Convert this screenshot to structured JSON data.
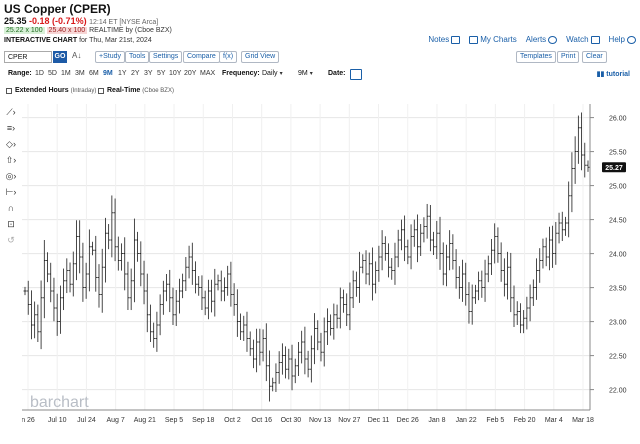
{
  "header": {
    "title": "US Copper (CPER)",
    "last": "25.35",
    "change": "-0.18 (-0.71%)",
    "time_exchange": "12:14 ET [NYSE Arca]",
    "bid": "25.22 x 100",
    "ask": "25.40 x 100",
    "realtime": "REALTIME by (Cboe BZX)",
    "interactive_chart": "INTERACTIVE CHART",
    "for_date": "for Thu, Mar 21st, 2024"
  },
  "top_links": [
    {
      "label": "Notes",
      "icon": "notes-icon"
    },
    {
      "label": "My Charts",
      "icon": "my-charts-icon"
    },
    {
      "label": "Alerts",
      "icon": "alerts-icon"
    },
    {
      "label": "Watch",
      "icon": "watch-icon"
    },
    {
      "label": "Help",
      "icon": "help-icon"
    }
  ],
  "toolbar": {
    "symbol_value": "CPER",
    "go_label": "GO",
    "sort_glyph": "A↓",
    "buttons": [
      "+Study",
      "Tools",
      "Settings",
      "Compare",
      "f(x)",
      "Grid View"
    ],
    "right_buttons": [
      "Templates",
      "Print",
      "Clear"
    ]
  },
  "controls": {
    "range_label": "Range:",
    "ranges": [
      "1D",
      "5D",
      "1M",
      "3M",
      "6M",
      "9M",
      "1Y",
      "2Y",
      "3Y",
      "5Y",
      "10Y",
      "20Y",
      "MAX"
    ],
    "active_range": "9M",
    "frequency_label": "Frequency:",
    "frequency_value": "Daily",
    "period_value": "9M",
    "date_label": "Date:",
    "tutorial": "tutorial"
  },
  "options": {
    "extended_label": "Extended Hours",
    "extended_sub": "(Intraday)",
    "realtime_label": "Real-Time",
    "realtime_sub": "(Cboe BZX)"
  },
  "watermark": "barchart",
  "colors": {
    "link": "#1a5fa8",
    "go_button": "#1d5aa6",
    "negative": "#d9191b",
    "bar": "#1a1a1a",
    "price_tag": "#111111"
  },
  "chart_data": {
    "type": "ohlc",
    "x_ticks": [
      "n 26",
      "Jul 10",
      "Jul 24",
      "Aug 7",
      "Aug 21",
      "Sep 5",
      "Sep 18",
      "Oct 2",
      "Oct 16",
      "Oct 30",
      "Nov 13",
      "Nov 27",
      "Dec 11",
      "Dec 26",
      "Jan 8",
      "Jan 22",
      "Feb 5",
      "Feb 20",
      "Mar 4",
      "Mar 18"
    ],
    "y_ticks": [
      "26.00",
      "25.50",
      "25.00",
      "24.50",
      "24.00",
      "23.50",
      "23.00",
      "22.50",
      "22.00"
    ],
    "ylim": [
      21.7,
      26.2
    ],
    "last_price_label": "25.27",
    "closes": [
      23.45,
      23.25,
      22.95,
      23.1,
      22.85,
      23.35,
      23.9,
      23.7,
      23.45,
      23.2,
      23.0,
      23.35,
      23.6,
      23.75,
      23.55,
      23.85,
      24.25,
      23.95,
      23.5,
      23.7,
      24.1,
      24.05,
      23.65,
      23.4,
      23.8,
      24.3,
      24.2,
      24.6,
      24.1,
      23.9,
      24.0,
      23.7,
      23.35,
      23.6,
      24.2,
      24.0,
      23.7,
      23.45,
      23.1,
      22.85,
      22.75,
      22.95,
      23.25,
      23.45,
      23.55,
      23.35,
      23.1,
      23.3,
      23.45,
      23.6,
      23.8,
      23.95,
      23.75,
      23.55,
      23.5,
      23.35,
      23.2,
      23.45,
      23.3,
      23.55,
      23.6,
      23.45,
      23.5,
      23.7,
      23.4,
      23.25,
      23.0,
      22.85,
      22.95,
      22.75,
      22.6,
      22.45,
      22.7,
      22.55,
      22.75,
      22.35,
      22.05,
      22.1,
      22.25,
      22.4,
      22.5,
      22.3,
      22.45,
      22.2,
      22.35,
      22.55,
      22.7,
      22.45,
      22.3,
      22.6,
      22.9,
      22.7,
      22.55,
      22.85,
      23.0,
      22.9,
      23.1,
      23.05,
      23.35,
      23.25,
      23.1,
      23.35,
      23.6,
      23.5,
      23.8,
      23.9,
      23.7,
      23.85,
      23.55,
      23.75,
      23.95,
      24.15,
      24.0,
      23.8,
      23.75,
      23.95,
      24.2,
      24.35,
      24.1,
      23.95,
      24.25,
      24.35,
      24.1,
      24.3,
      24.4,
      24.55,
      24.2,
      24.1,
      24.3,
      24.0,
      23.7,
      23.95,
      24.15,
      23.9,
      23.65,
      23.5,
      23.7,
      23.4,
      23.15,
      23.35,
      23.45,
      23.6,
      23.5,
      23.7,
      23.85,
      24.05,
      24.25,
      24.0,
      23.75,
      23.55,
      23.8,
      23.35,
      23.1,
      23.15,
      22.95,
      23.05,
      23.2,
      23.35,
      23.5,
      23.75,
      23.9,
      24.1,
      23.95,
      24.2,
      24.0,
      24.3,
      24.45,
      24.35,
      24.45,
      24.85,
      25.25,
      25.5,
      25.85,
      25.45,
      25.3,
      25.27
    ]
  }
}
